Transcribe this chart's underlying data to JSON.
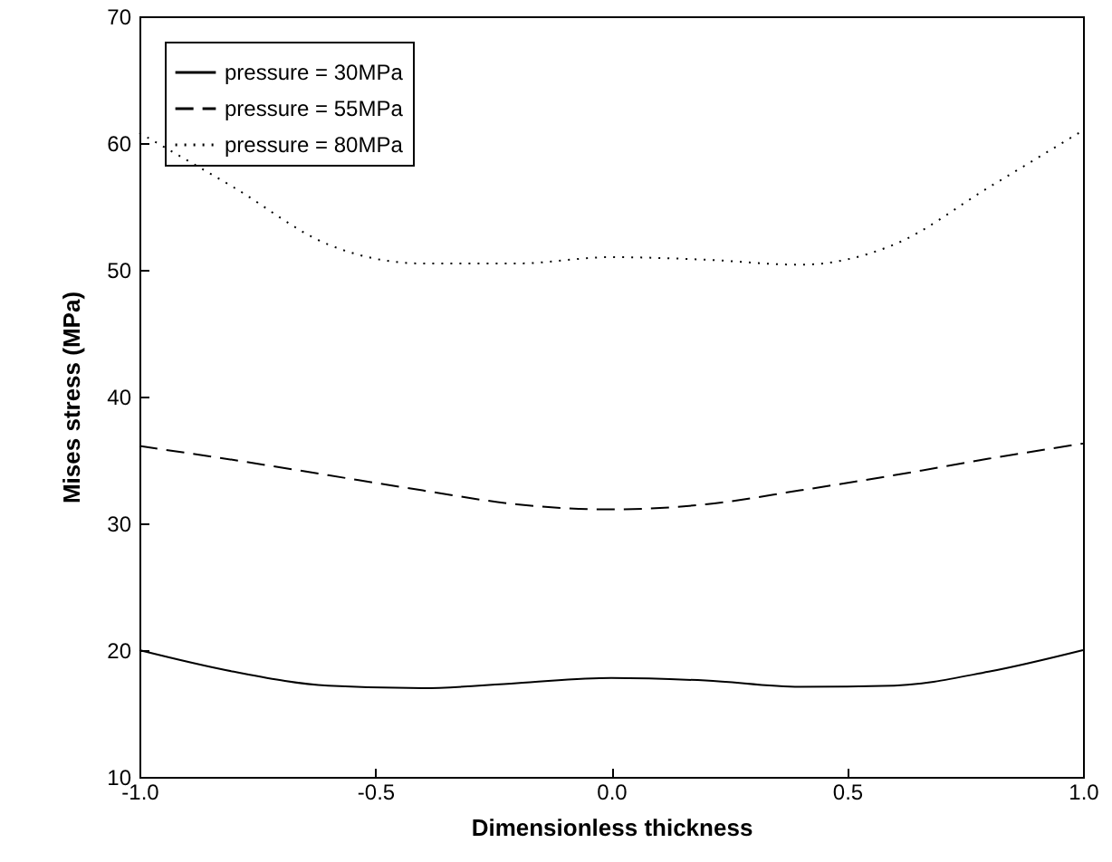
{
  "chart_data": {
    "type": "line",
    "xlabel": "Dimensionless thickness",
    "ylabel": "Mises stress (MPa)",
    "x": [
      -1,
      -0.8,
      -0.6,
      -0.4,
      -0.2,
      0,
      0.2,
      0.4,
      0.6,
      0.8,
      1
    ],
    "xlim": [
      -1,
      1
    ],
    "xticks": [
      {
        "value": -1,
        "label": "-1.0"
      },
      {
        "value": -0.5,
        "label": "-0.5"
      },
      {
        "value": 0,
        "label": "0.0"
      },
      0.5,
      {
        "value": 1,
        "label": "1.0"
      }
    ],
    "ylim": [
      10,
      70
    ],
    "yticks": [
      10,
      20,
      30,
      40,
      50,
      60,
      70
    ],
    "grid": false,
    "legend": "top left",
    "marker": "none",
    "series": [
      {
        "name": "pressure = 30MPa",
        "color": "#000000",
        "line_style": "solid",
        "values": [
          20,
          18.3,
          17.2,
          17.0,
          17.4,
          17.8,
          17.6,
          17.1,
          17.2,
          18.3,
          20
        ]
      },
      {
        "name": "pressure = 55MPa",
        "color": "#000000",
        "line_style": "dashed",
        "values": [
          36.1,
          35.0,
          33.8,
          32.6,
          31.5,
          31.1,
          31.5,
          32.6,
          33.8,
          35.1,
          36.3
        ]
      },
      {
        "name": "pressure = 80MPa",
        "color": "#000000",
        "line_style": "dotted",
        "values": [
          60.8,
          56.5,
          52.0,
          50.5,
          50.5,
          51.0,
          50.8,
          50.4,
          52.0,
          56.5,
          61.0
        ]
      }
    ]
  }
}
